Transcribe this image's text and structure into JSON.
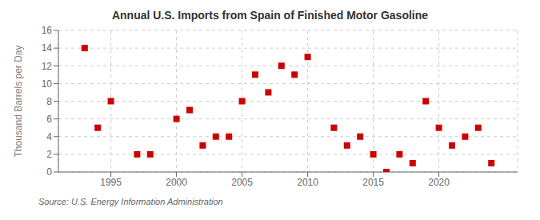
{
  "chart_data": {
    "type": "scatter",
    "title": "Annual U.S. Imports from Spain of Finished Motor Gasoline",
    "ylabel": "Thousand Barrels per Day",
    "annotations": [
      "Source: U.S. Energy Information Administration"
    ],
    "x": [
      1993,
      1994,
      1995,
      1997,
      1998,
      2000,
      2001,
      2002,
      2003,
      2004,
      2005,
      2006,
      2007,
      2008,
      2009,
      2010,
      2012,
      2013,
      2014,
      2015,
      2016,
      2017,
      2018,
      2019,
      2020,
      2021,
      2022,
      2023,
      2024
    ],
    "values": [
      14,
      5,
      8,
      2,
      2,
      6,
      7,
      3,
      4,
      4,
      8,
      11,
      9,
      12,
      11,
      13,
      5,
      3,
      4,
      2,
      0,
      2,
      1,
      8,
      5,
      3,
      4,
      5,
      1
    ],
    "color": "#cc0000",
    "marker": "square",
    "xlim": [
      1991,
      2026
    ],
    "xticks": [
      1995,
      2000,
      2005,
      2010,
      2015,
      2020
    ],
    "ylim": [
      0,
      16
    ],
    "yticks": [
      0,
      2,
      4,
      6,
      8,
      10,
      12,
      14,
      16
    ],
    "grid": true
  }
}
